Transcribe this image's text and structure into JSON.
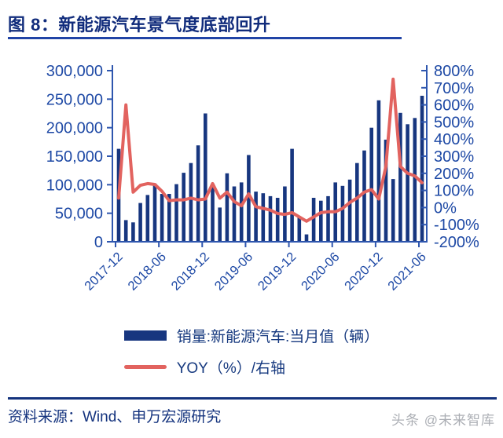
{
  "title": "图 8：新能源汽车景气度底部回升",
  "footer": {
    "source": "资料来源：Wind、申万宏源研究",
    "watermark": "头条 @未来智库"
  },
  "colors": {
    "title": "#112C7C",
    "underline": "#2144A6",
    "bar": "#17367F",
    "line": "#E2635F",
    "axis_line": "#2E56AE",
    "axis_label": "#1E49A5",
    "legend_text": "#16397F",
    "footer_text": "#14337E",
    "divider": "#14337E",
    "watermark": "#ACAFB5"
  },
  "chart_data": {
    "type": "bar+line",
    "title": "图 8：新能源汽车景气度底部回升",
    "grid": false,
    "legend_position": "bottom",
    "x": [
      "2017-12",
      "2018-01",
      "2018-02",
      "2018-03",
      "2018-04",
      "2018-05",
      "2018-06",
      "2018-07",
      "2018-08",
      "2018-09",
      "2018-10",
      "2018-11",
      "2018-12",
      "2019-01",
      "2019-02",
      "2019-03",
      "2019-04",
      "2019-05",
      "2019-06",
      "2019-07",
      "2019-08",
      "2019-09",
      "2019-10",
      "2019-11",
      "2019-12",
      "2020-01",
      "2020-02",
      "2020-03",
      "2020-04",
      "2020-05",
      "2020-06",
      "2020-07",
      "2020-08",
      "2020-09",
      "2020-10",
      "2020-11",
      "2020-12",
      "2021-01",
      "2021-02",
      "2021-03",
      "2021-04",
      "2021-05",
      "2021-06"
    ],
    "x_axis_tick_labels": [
      "2017-12",
      "2018-06",
      "2018-12",
      "2019-06",
      "2019-12",
      "2020-06",
      "2020-12",
      "2021-06"
    ],
    "series": [
      {
        "name": "销量:新能源汽车:当月值（辆）",
        "type": "bar",
        "axis": "left",
        "color": "#17367F",
        "values": [
          163000,
          38000,
          34000,
          68000,
          82000,
          102000,
          84000,
          84000,
          101000,
          121000,
          138000,
          169000,
          225000,
          96000,
          60000,
          120000,
          97000,
          104000,
          152000,
          88000,
          85000,
          80000,
          77000,
          97000,
          163000,
          44000,
          13000,
          77000,
          72000,
          80000,
          104000,
          98000,
          109000,
          138000,
          160000,
          200000,
          248000,
          179000,
          110000,
          226000,
          206000,
          217000,
          256000
        ]
      },
      {
        "name": "YOY（%）/右轴",
        "type": "line",
        "axis": "right",
        "color": "#E2635F",
        "values": [
          55,
          600,
          90,
          130,
          140,
          135,
          95,
          40,
          45,
          45,
          55,
          45,
          50,
          140,
          55,
          90,
          35,
          10,
          80,
          5,
          -5,
          -15,
          -35,
          -40,
          -30,
          -55,
          -80,
          -55,
          -30,
          -25,
          -25,
          -5,
          30,
          55,
          90,
          105,
          50,
          240,
          750,
          240,
          200,
          185,
          145
        ]
      }
    ],
    "left_axis": {
      "min": 0,
      "max": 300000,
      "tick_labels": [
        "0",
        "50,000",
        "100,000",
        "150,000",
        "200,000",
        "250,000",
        "300,000"
      ]
    },
    "right_axis": {
      "min": -200,
      "max": 800,
      "tick_labels": [
        "-200%",
        "-100%",
        "0%",
        "100%",
        "200%",
        "300%",
        "400%",
        "500%",
        "600%",
        "700%",
        "800%"
      ]
    }
  }
}
